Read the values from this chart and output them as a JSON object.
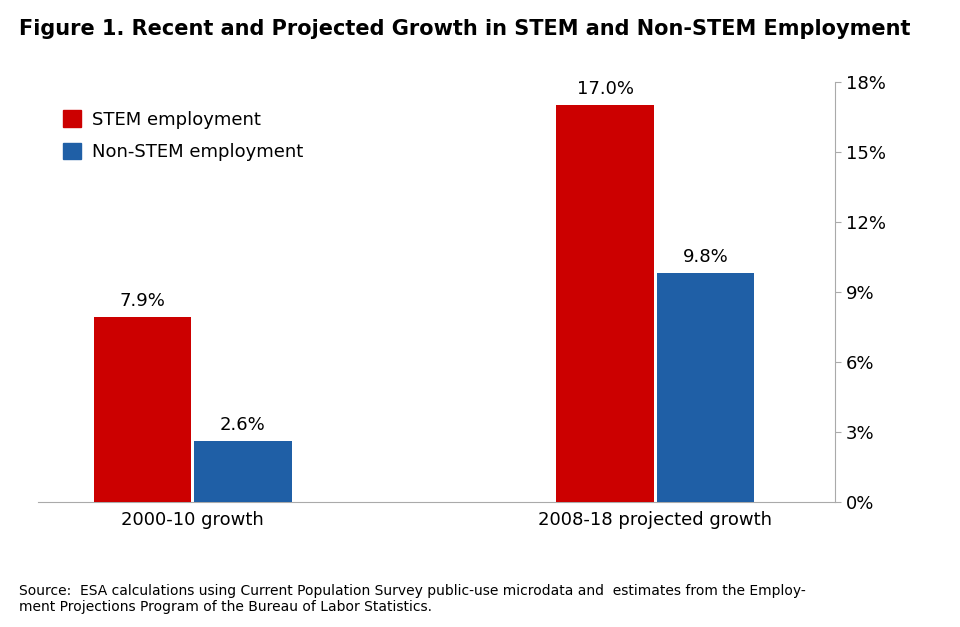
{
  "title": "Figure 1. Recent and Projected Growth in STEM and Non-STEM Employment",
  "categories": [
    "2000-10 growth",
    "2008-18 projected growth"
  ],
  "stem_values": [
    7.9,
    17.0
  ],
  "nonstem_values": [
    2.6,
    9.8
  ],
  "stem_color": "#CC0000",
  "nonstem_color": "#1F5FA6",
  "stem_label": "STEM employment",
  "nonstem_label": "Non-STEM employment",
  "ylim": [
    0,
    18
  ],
  "yticks": [
    0,
    3,
    6,
    9,
    12,
    15,
    18
  ],
  "ytick_labels": [
    "0%",
    "3%",
    "6%",
    "9%",
    "12%",
    "15%",
    "18%"
  ],
  "source_text": "Source:  ESA calculations using Current Population Survey public-use microdata and  estimates from the Employ-\nment Projections Program of the Bureau of Labor Statistics.",
  "background_color": "#FFFFFF",
  "bar_width": 0.38,
  "bar_gap": 0.01,
  "group_positions": [
    1.0,
    2.8
  ],
  "xlim": [
    0.4,
    3.5
  ]
}
